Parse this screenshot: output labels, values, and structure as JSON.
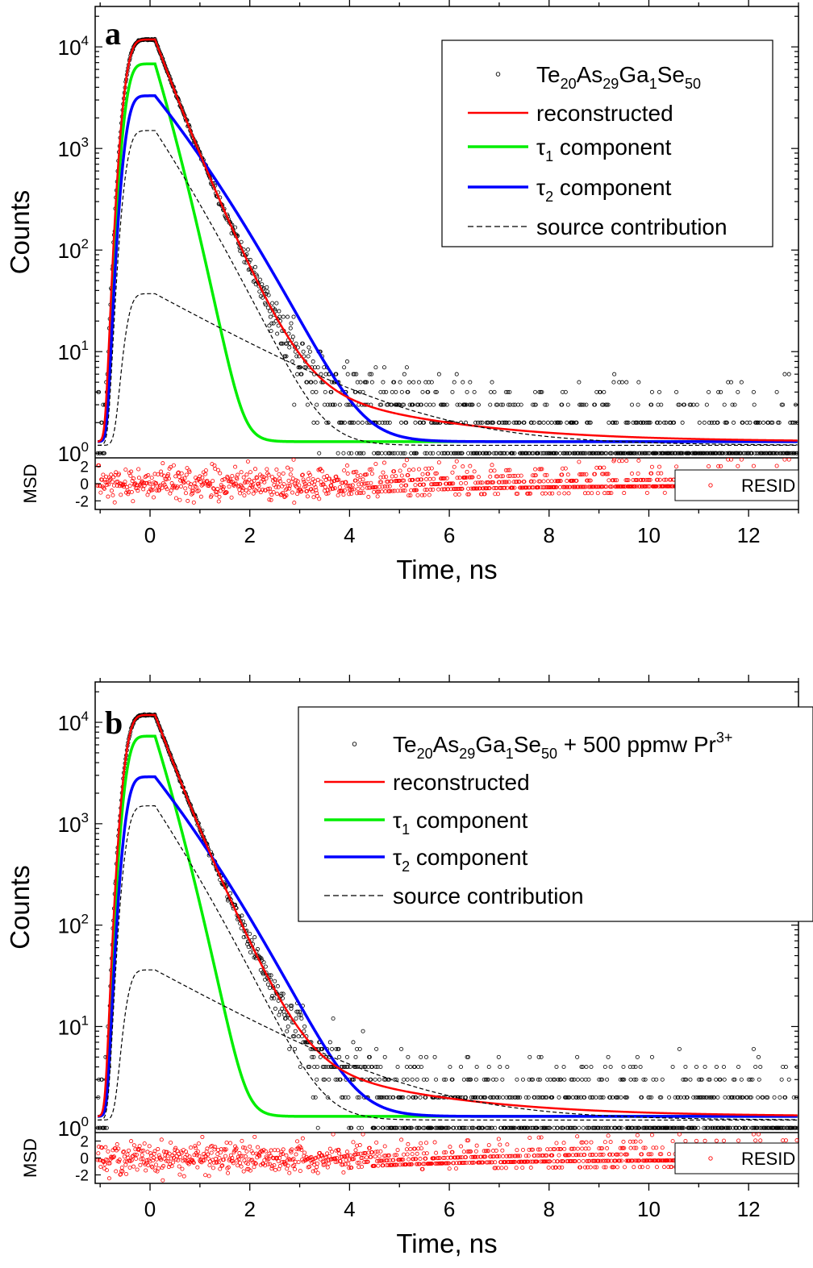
{
  "chart_data": [
    {
      "panel": "a",
      "type": "scatter",
      "yscale": "log",
      "xlabel": "Time, ns",
      "ylabel": "Counts",
      "resid_ylabel": "MSD",
      "xlim": [
        -1.1,
        13.0
      ],
      "ylim": [
        0.9,
        25000
      ],
      "xticks": [
        0,
        2,
        4,
        6,
        8,
        10,
        12
      ],
      "yticks": [
        {
          "value": 1,
          "label_base": "10",
          "label_exp": "0"
        },
        {
          "value": 10,
          "label_base": "10",
          "label_exp": "1"
        },
        {
          "value": 100,
          "label_base": "10",
          "label_exp": "2"
        },
        {
          "value": 1000,
          "label_base": "10",
          "label_exp": "3"
        },
        {
          "value": 10000,
          "label_base": "10",
          "label_exp": "4"
        }
      ],
      "resid_ylim": [
        -3,
        3
      ],
      "resid_yticks": [
        -2,
        0,
        2
      ],
      "legend": {
        "sample": [
          {
            "text": "Te",
            "sub": ""
          },
          {
            "text": "20",
            "sub": "sub"
          },
          {
            "text": "As",
            "sub": ""
          },
          {
            "text": "29",
            "sub": "sub"
          },
          {
            "text": "Ga",
            "sub": ""
          },
          {
            "text": "1",
            "sub": "sub"
          },
          {
            "text": "Se",
            "sub": ""
          },
          {
            "text": "50",
            "sub": "sub"
          }
        ],
        "reconstructed": "reconstructed",
        "tau1": "component",
        "tau1_symbol": "τ",
        "tau1_sub": "1",
        "tau2": "component",
        "tau2_symbol": "τ",
        "tau2_sub": "2",
        "source": "source contribution",
        "placement": "top-right"
      },
      "resid_legend": "RESID",
      "model": {
        "x0": -0.45,
        "rise_width": 0.12,
        "peak_time": 0.1,
        "peak_counts": 11800,
        "background": 1.3,
        "tau1_peak": 6800,
        "tau1_lifetime_ns": 0.26,
        "tau2_peak": 3300,
        "tau2_lifetime_ns": 0.37,
        "source_fast_peak": 1500,
        "source_fast_lifetime_ns": 0.3,
        "source_slow_peak": 36,
        "source_slow_lifetime_ns": 1.6,
        "tail_amplitude": 9.0,
        "tail_lifetime_ns": 2.3
      },
      "colors": {
        "data": "#000000",
        "reconstructed": "#ff0000",
        "tau1": "#00ee00",
        "tau2": "#0000ff",
        "source": "#000000",
        "resid": "#ff0000"
      }
    },
    {
      "panel": "b",
      "type": "scatter",
      "yscale": "log",
      "xlabel": "Time, ns",
      "ylabel": "Counts",
      "resid_ylabel": "MSD",
      "xlim": [
        -1.1,
        13.0
      ],
      "ylim": [
        0.9,
        25000
      ],
      "xticks": [
        0,
        2,
        4,
        6,
        8,
        10,
        12
      ],
      "yticks": [
        {
          "value": 1,
          "label_base": "10",
          "label_exp": "0"
        },
        {
          "value": 10,
          "label_base": "10",
          "label_exp": "1"
        },
        {
          "value": 100,
          "label_base": "10",
          "label_exp": "2"
        },
        {
          "value": 1000,
          "label_base": "10",
          "label_exp": "3"
        },
        {
          "value": 10000,
          "label_base": "10",
          "label_exp": "4"
        }
      ],
      "resid_ylim": [
        -3,
        3
      ],
      "resid_yticks": [
        -2,
        0,
        2
      ],
      "legend": {
        "sample": [
          {
            "text": "Te",
            "sub": ""
          },
          {
            "text": "20",
            "sub": "sub"
          },
          {
            "text": "As",
            "sub": ""
          },
          {
            "text": "29",
            "sub": "sub"
          },
          {
            "text": "Ga",
            "sub": ""
          },
          {
            "text": "1",
            "sub": "sub"
          },
          {
            "text": "Se",
            "sub": ""
          },
          {
            "text": "50",
            "sub": "sub"
          },
          {
            "text": " + 500 ppmw Pr",
            "sub": ""
          },
          {
            "text": "3+",
            "sub": "sup"
          }
        ],
        "reconstructed": "reconstructed",
        "tau1": "component",
        "tau1_symbol": "τ",
        "tau1_sub": "1",
        "tau2": "component",
        "tau2_symbol": "τ",
        "tau2_sub": "2",
        "source": "source contribution",
        "placement": "top-right"
      },
      "resid_legend": "RESID",
      "model": {
        "x0": -0.45,
        "rise_width": 0.12,
        "peak_time": 0.1,
        "peak_counts": 11800,
        "background": 1.3,
        "tau1_peak": 7300,
        "tau1_lifetime_ns": 0.27,
        "tau2_peak": 2900,
        "tau2_lifetime_ns": 0.36,
        "source_fast_peak": 1500,
        "source_fast_lifetime_ns": 0.3,
        "source_slow_peak": 35,
        "source_slow_lifetime_ns": 1.6,
        "tail_amplitude": 8.5,
        "tail_lifetime_ns": 2.3
      },
      "colors": {
        "data": "#000000",
        "reconstructed": "#ff0000",
        "tau1": "#00ee00",
        "tau2": "#0000ff",
        "source": "#000000",
        "resid": "#ff0000"
      }
    }
  ]
}
